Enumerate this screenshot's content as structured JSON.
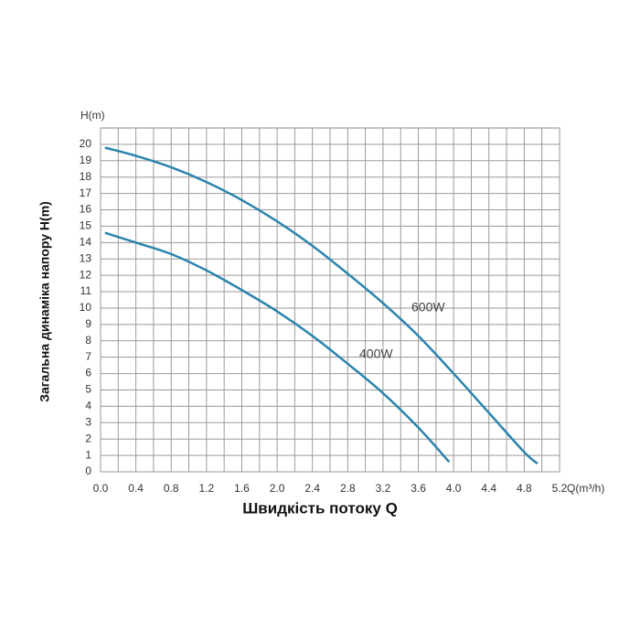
{
  "chart_data": {
    "type": "line",
    "y_axis_label": "H(m)",
    "x_axis_unit_label": "Q(m³/h)",
    "x_title": "Швидкість потоку Q",
    "y_title": "Загальна динаміка напору H(m)",
    "xlim": [
      0,
      5.2
    ],
    "ylim": [
      0,
      21
    ],
    "xticks": [
      {
        "value": 0,
        "label": "0.0"
      },
      0.4,
      0.8,
      1.2,
      1.6,
      {
        "value": 2,
        "label": "2.0"
      },
      2.4,
      2.8,
      3.2,
      3.6,
      {
        "value": 4,
        "label": "4.0"
      },
      4.4,
      4.8,
      5.2
    ],
    "yticks": [
      0,
      1,
      2,
      3,
      4,
      5,
      6,
      7,
      8,
      9,
      10,
      11,
      12,
      13,
      14,
      15,
      16,
      17,
      18,
      19,
      20
    ],
    "grid": true,
    "series": [
      {
        "name": "600W",
        "color": "#2b84ad",
        "x": [
          0.05,
          0.4,
          0.8,
          1.2,
          1.6,
          2.0,
          2.4,
          2.8,
          3.2,
          3.6,
          4.0,
          4.4,
          4.8,
          4.95
        ],
        "values": [
          19.8,
          19.3,
          18.6,
          17.7,
          16.6,
          15.3,
          13.8,
          12.1,
          10.3,
          8.3,
          6.0,
          3.6,
          1.2,
          0.5
        ]
      },
      {
        "name": "400W",
        "color": "#2b84ad",
        "x": [
          0.05,
          0.4,
          0.8,
          1.2,
          1.6,
          2.0,
          2.4,
          2.8,
          3.2,
          3.6,
          3.95
        ],
        "values": [
          14.6,
          14.0,
          13.3,
          12.3,
          11.1,
          9.8,
          8.3,
          6.6,
          4.8,
          2.7,
          0.6
        ]
      }
    ]
  }
}
